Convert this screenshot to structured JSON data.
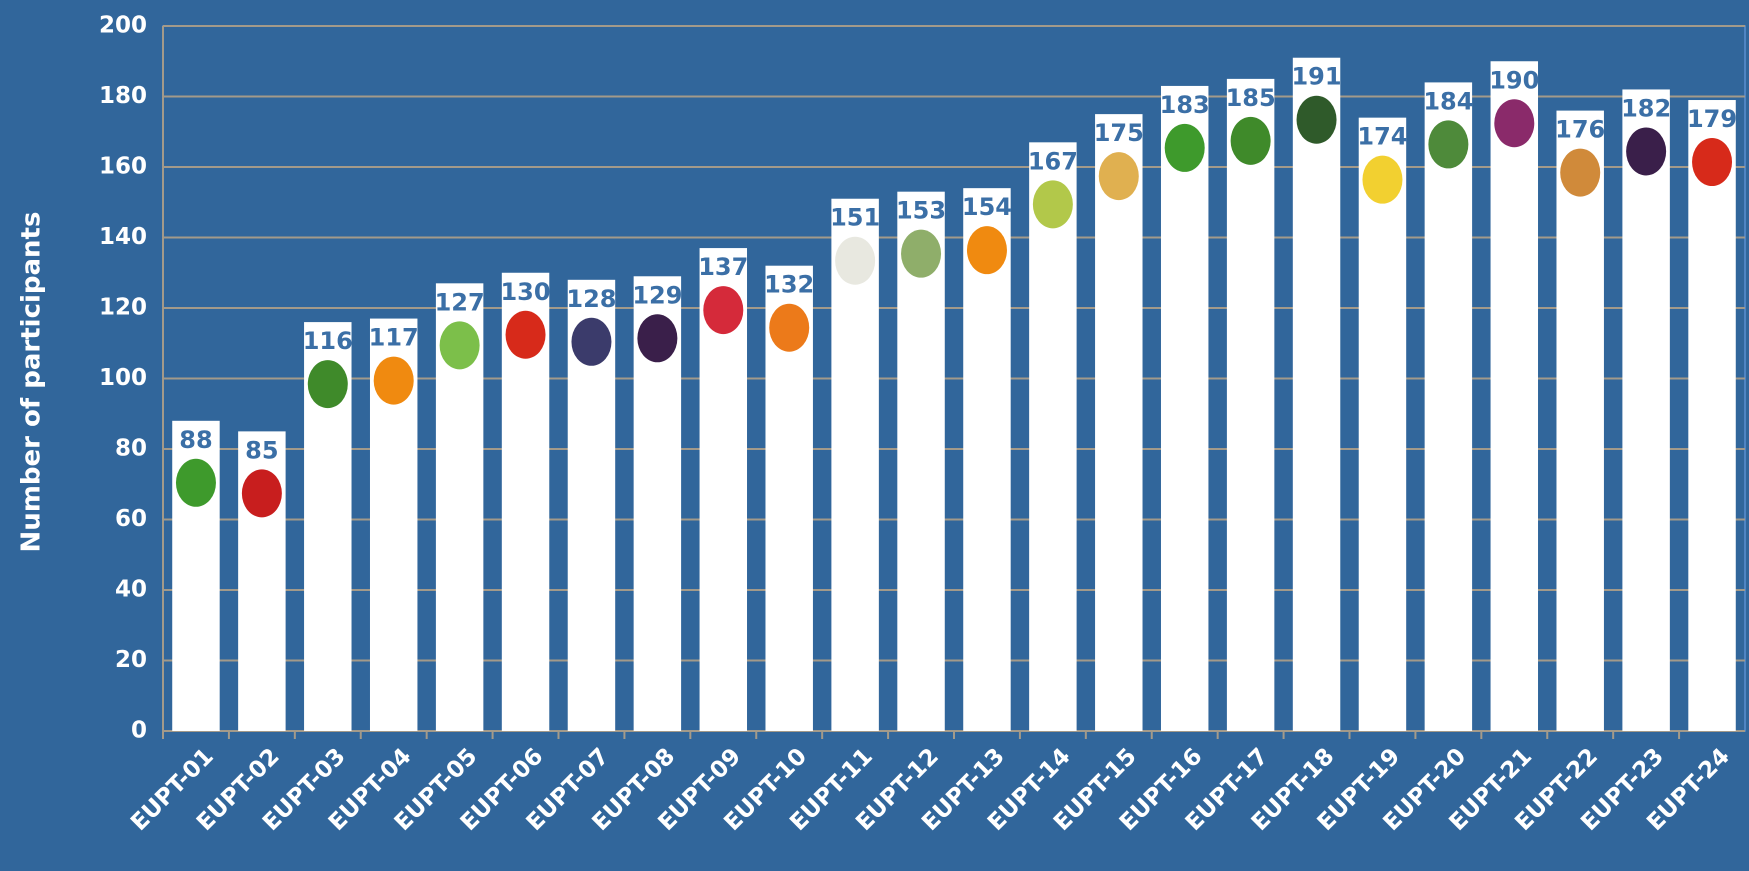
{
  "chart_data": {
    "type": "bar",
    "y_label": "Number of participants",
    "categories": [
      "EUPT-01",
      "EUPT-02",
      "EUPT-03",
      "EUPT-04",
      "EUPT-05",
      "EUPT-06",
      "EUPT-07",
      "EUPT-08",
      "EUPT-09",
      "EUPT-10",
      "EUPT-11",
      "EUPT-12",
      "EUPT-13",
      "EUPT-14",
      "EUPT-15",
      "EUPT-16",
      "EUPT-17",
      "EUPT-18",
      "EUPT-19",
      "EUPT-20",
      "EUPT-21",
      "EUPT-22",
      "EUPT-23",
      "EUPT-24"
    ],
    "values": [
      88,
      85,
      116,
      117,
      127,
      130,
      128,
      129,
      137,
      132,
      151,
      153,
      154,
      167,
      175,
      183,
      185,
      191,
      174,
      184,
      190,
      176,
      182,
      179
    ],
    "color": "#ffffff",
    "ylim": [
      0,
      200
    ],
    "yticks": [
      0,
      20,
      40,
      60,
      80,
      100,
      120,
      140,
      160,
      180,
      200
    ],
    "grid": true
  }
}
